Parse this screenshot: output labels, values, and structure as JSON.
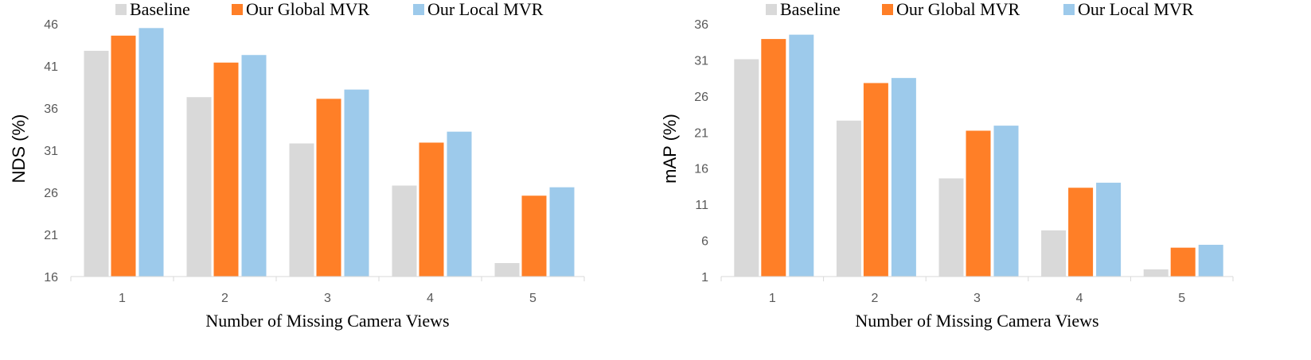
{
  "chart_data": [
    {
      "type": "bar",
      "title": "",
      "xlabel": "Number of Missing Camera Views",
      "ylabel": "NDS (%)",
      "categories": [
        "1",
        "2",
        "3",
        "4",
        "5"
      ],
      "ylim": [
        16,
        46
      ],
      "yticks": [
        "16",
        "21",
        "26",
        "31",
        "36",
        "41",
        "46"
      ],
      "grid": false,
      "legend_position": "top",
      "series": [
        {
          "name": "Baseline",
          "color": "#d9d9d9",
          "values": [
            42.8,
            37.3,
            31.8,
            26.8,
            17.6
          ]
        },
        {
          "name": "Our Global MVR",
          "color": "#ff7f27",
          "values": [
            44.6,
            41.4,
            37.1,
            31.9,
            25.6
          ]
        },
        {
          "name": "Our Local MVR",
          "color": "#9dcaeb",
          "values": [
            45.5,
            42.3,
            38.2,
            33.2,
            26.6
          ]
        }
      ]
    },
    {
      "type": "bar",
      "title": "",
      "xlabel": "Number of Missing Camera Views",
      "ylabel": "mAP (%)",
      "categories": [
        "1",
        "2",
        "3",
        "4",
        "5"
      ],
      "ylim": [
        1,
        36
      ],
      "yticks": [
        "1",
        "6",
        "11",
        "16",
        "21",
        "26",
        "31",
        "36"
      ],
      "grid": false,
      "legend_position": "top",
      "series": [
        {
          "name": "Baseline",
          "color": "#d9d9d9",
          "values": [
            31.1,
            22.6,
            14.6,
            7.4,
            2.0
          ]
        },
        {
          "name": "Our Global MVR",
          "color": "#ff7f27",
          "values": [
            33.9,
            27.8,
            21.2,
            13.3,
            5.0
          ]
        },
        {
          "name": "Our Local MVR",
          "color": "#9dcaeb",
          "values": [
            34.5,
            28.5,
            21.9,
            14.0,
            5.4
          ]
        }
      ]
    }
  ]
}
